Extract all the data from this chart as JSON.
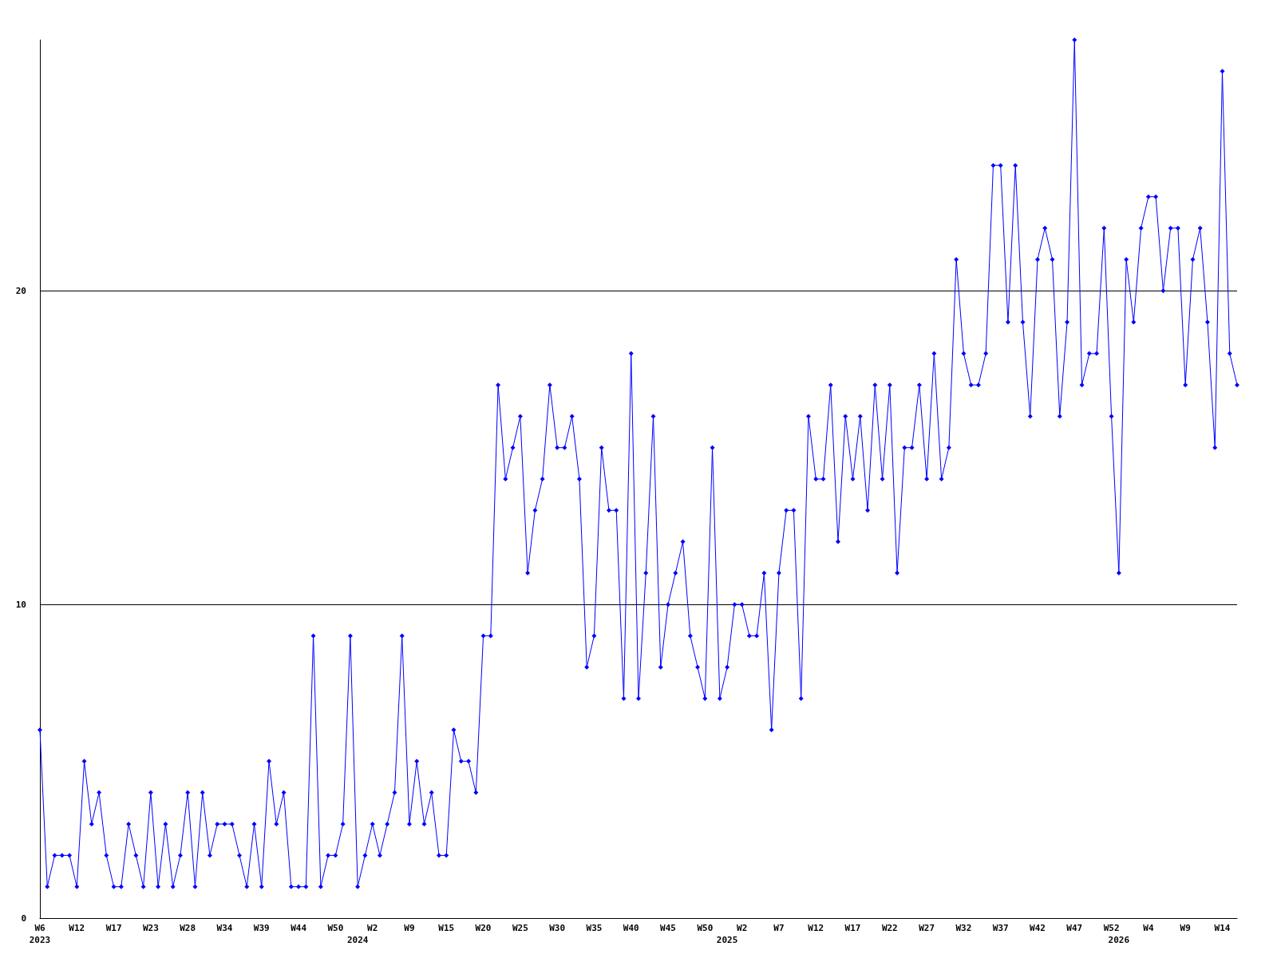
{
  "chart_data": {
    "type": "line",
    "categories": [
      "W6\n2023",
      null,
      null,
      null,
      null,
      "W12",
      null,
      null,
      null,
      null,
      "W17",
      null,
      null,
      null,
      null,
      "W23",
      null,
      null,
      null,
      null,
      "W28",
      null,
      null,
      null,
      null,
      "W34",
      null,
      null,
      null,
      null,
      "W39",
      null,
      null,
      null,
      null,
      "W44",
      null,
      null,
      null,
      null,
      "W50",
      null,
      null,
      "\n2024",
      null,
      "W2",
      null,
      null,
      null,
      null,
      "W9",
      null,
      null,
      null,
      null,
      "W15",
      null,
      null,
      null,
      null,
      "W20",
      null,
      null,
      null,
      null,
      "W25",
      null,
      null,
      null,
      null,
      "W30",
      null,
      null,
      null,
      null,
      "W35",
      null,
      null,
      null,
      null,
      "W40",
      null,
      null,
      null,
      null,
      "W45",
      null,
      null,
      null,
      null,
      "W50",
      null,
      null,
      "\n2025",
      null,
      "W2",
      null,
      null,
      null,
      null,
      "W7",
      null,
      null,
      null,
      null,
      "W12",
      null,
      null,
      null,
      null,
      "W17",
      null,
      null,
      null,
      null,
      "W22",
      null,
      null,
      null,
      null,
      "W27",
      null,
      null,
      null,
      null,
      "W32",
      null,
      null,
      null,
      null,
      "W37",
      null,
      null,
      null,
      null,
      "W42",
      null,
      null,
      null,
      null,
      "W47",
      null,
      null,
      null,
      null,
      "W52",
      "\n2026",
      null,
      null,
      null,
      "W4",
      null,
      null,
      null,
      null,
      "W9",
      null,
      null,
      null,
      null,
      "W14",
      null,
      null
    ],
    "series": [
      {
        "color": "#0000ff",
        "values": [
          6,
          1,
          2,
          2,
          2,
          1,
          5,
          3,
          4,
          2,
          1,
          1,
          3,
          2,
          1,
          4,
          1,
          3,
          1,
          2,
          4,
          1,
          4,
          2,
          3,
          3,
          3,
          2,
          1,
          3,
          1,
          5,
          3,
          4,
          1,
          1,
          1,
          9,
          1,
          2,
          2,
          3,
          9,
          1,
          2,
          3,
          2,
          3,
          4,
          9,
          3,
          5,
          3,
          4,
          2,
          2,
          6,
          5,
          5,
          4,
          9,
          9,
          17,
          14,
          15,
          16,
          11,
          13,
          14,
          17,
          15,
          15,
          16,
          14,
          8,
          9,
          15,
          13,
          13,
          7,
          18,
          7,
          11,
          16,
          8,
          10,
          11,
          12,
          9,
          8,
          7,
          15,
          7,
          8,
          10,
          10,
          9,
          9,
          11,
          6,
          11,
          13,
          13,
          7,
          16,
          14,
          14,
          17,
          12,
          16,
          14,
          16,
          13,
          17,
          14,
          17,
          11,
          15,
          15,
          17,
          14,
          18,
          14,
          15,
          21,
          18,
          17,
          17,
          18,
          24,
          24,
          19,
          24,
          19,
          16,
          21,
          22,
          21,
          16,
          19,
          28,
          17,
          18,
          18,
          22,
          16,
          11,
          21,
          19,
          22,
          23,
          23,
          20,
          22,
          22,
          17,
          21,
          22,
          19,
          15,
          27,
          18,
          17
        ]
      }
    ],
    "ylim": [
      0,
      28
    ],
    "yticks": [
      0,
      10,
      20
    ],
    "grid": "y",
    "marker": "diamond",
    "line_style": "solid"
  }
}
